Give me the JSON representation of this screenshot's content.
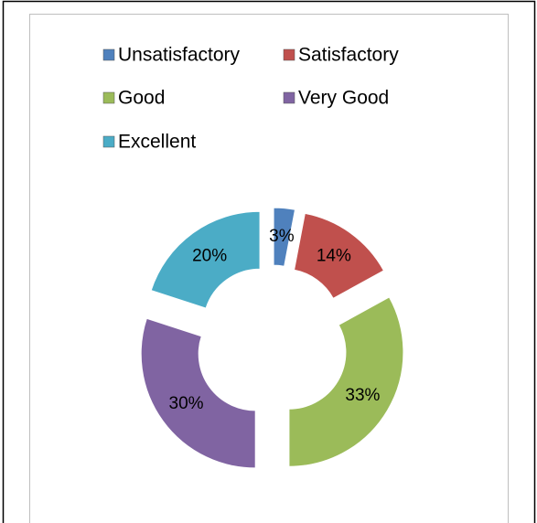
{
  "chart_data": {
    "type": "doughnut",
    "categories": [
      "Unsatisfactory",
      "Satisfactory",
      "Good",
      "Very Good",
      "Excellent"
    ],
    "values": [
      3,
      14,
      33,
      30,
      20
    ],
    "value_labels": [
      "3%",
      "14%",
      "33%",
      "30%",
      "20%"
    ],
    "colors": [
      "#4f81bd",
      "#c0504d",
      "#9bbb59",
      "#8064a2",
      "#4bacc6"
    ],
    "legend": "top"
  }
}
